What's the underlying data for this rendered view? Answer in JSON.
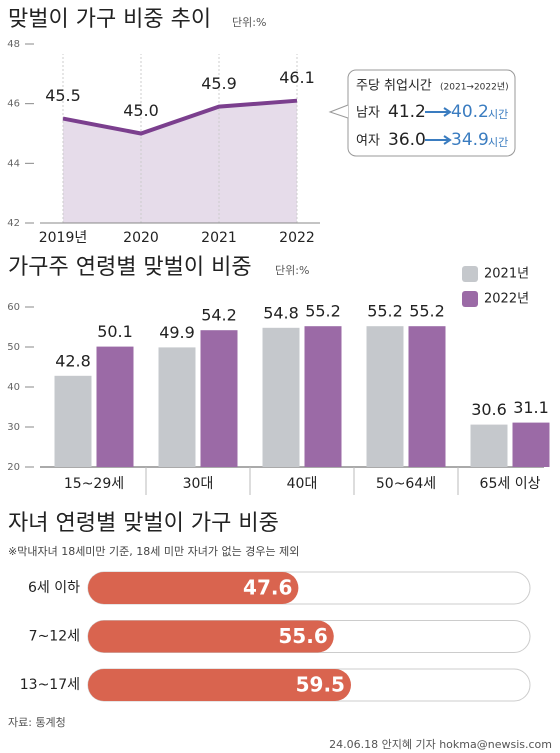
{
  "chart_data": [
    {
      "type": "line",
      "title": "맞벌이 가구 비중 추이",
      "unit": "단위:%",
      "categories": [
        "2019년",
        "2020",
        "2021",
        "2022"
      ],
      "values": [
        45.5,
        45.0,
        45.9,
        46.1
      ],
      "value_labels": [
        "45.5",
        "45.0",
        "45.9",
        "46.1"
      ],
      "color": "#7b3f8e",
      "ylim": [
        42,
        48
      ],
      "yticks": [
        42,
        44,
        46,
        48
      ],
      "callout": {
        "title": "주당 취업시간",
        "period": "(2021→2022년)",
        "rows": [
          {
            "label": "남자",
            "from": "41.2",
            "to": "40.2",
            "unit": "시간"
          },
          {
            "label": "여자",
            "from": "36.0",
            "to": "34.9",
            "unit": "시간"
          }
        ]
      }
    },
    {
      "type": "bar",
      "title": "가구주 연령별 맞벌이 비중",
      "unit": "단위:%",
      "categories": [
        "15~29세",
        "30대",
        "40대",
        "50~64세",
        "65세 이상"
      ],
      "series": [
        {
          "name": "2021년",
          "color": "#c5c8cc",
          "values": [
            42.8,
            49.9,
            54.8,
            55.2,
            30.6
          ]
        },
        {
          "name": "2022년",
          "color": "#9b6aa6",
          "values": [
            50.1,
            54.2,
            55.2,
            55.2,
            31.1
          ]
        }
      ],
      "ylim": [
        20,
        60
      ],
      "yticks": [
        20,
        30,
        40,
        50,
        60
      ],
      "legend": "top-right"
    },
    {
      "type": "barh",
      "title": "자녀 연령별 맞벌이 가구 비중",
      "subtitle": "※막내자녀 18세미만 기준, 18세 미만 자녀가 없는 경우는 제외",
      "categories": [
        "6세 이하",
        "7~12세",
        "13~17세"
      ],
      "values": [
        47.6,
        55.6,
        59.5
      ],
      "color": "#d9644f",
      "xlim": [
        0,
        100
      ]
    }
  ],
  "source": "자료: 통계청",
  "credit": "24.06.18 안지혜 기자 hokma@newsis.com"
}
